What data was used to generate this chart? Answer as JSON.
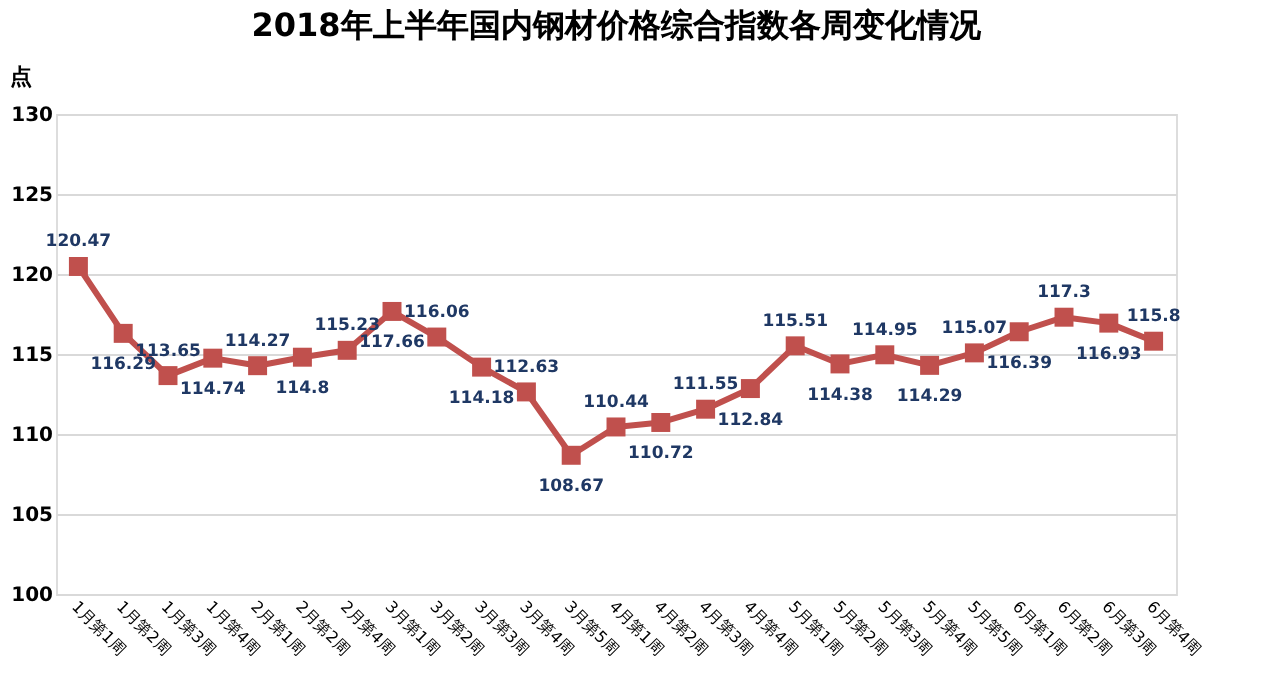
{
  "chart_data": {
    "type": "line",
    "title": "2018年上半年国内钢材价格综合指数各周变化情况",
    "ylabel": "点",
    "categories": [
      "1月第1周",
      "1月第2周",
      "1月第3周",
      "1月第4周",
      "2月第1周",
      "2月第2周",
      "2月第4周",
      "3月第1周",
      "3月第2周",
      "3月第3周",
      "3月第4周",
      "3月第5周",
      "4月第1周",
      "4月第2周",
      "4月第3周",
      "4月第4周",
      "5月第1周",
      "5月第2周",
      "5月第3周",
      "5月第4周",
      "5月第5周",
      "6月第1周",
      "6月第2周",
      "6月第3周",
      "6月第4周"
    ],
    "series": [
      {
        "color": "#c0504d",
        "values": [
          120.47,
          116.29,
          113.65,
          114.74,
          114.27,
          114.8,
          115.23,
          117.66,
          116.06,
          114.18,
          112.63,
          108.67,
          110.44,
          110.72,
          111.55,
          112.84,
          115.51,
          114.38,
          114.95,
          114.29,
          115.07,
          116.39,
          117.3,
          116.93,
          115.8
        ]
      }
    ],
    "ylim": [
      100,
      130
    ],
    "yticks": [
      100,
      105,
      110,
      115,
      120,
      125,
      130
    ],
    "grid": "y",
    "legend": false,
    "marker": "square",
    "line_style": "solid",
    "data_labels": true
  }
}
